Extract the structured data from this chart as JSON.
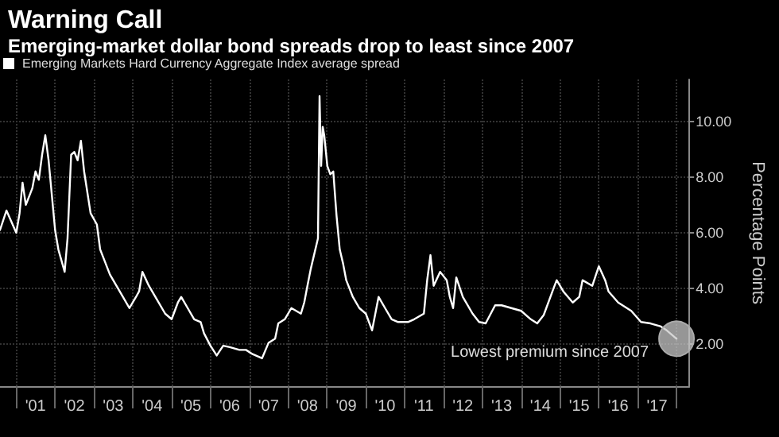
{
  "chart_data": {
    "type": "line",
    "title": "Warning Call",
    "subtitle": "Emerging-market dollar bond spreads drop to least since 2007",
    "ylabel": "Percentage Points",
    "annotations": [
      {
        "text": "Lowest premium since 2007",
        "x": "2018-01",
        "y": 2.2
      }
    ],
    "series": [
      {
        "name": "Emerging Markets Hard Currency Aggregate Index average spread",
        "color": "#ffffff",
        "x": [
          "2000-08",
          "2000-10",
          "2001-01",
          "2001-02",
          "2001-03",
          "2001-04",
          "2001-06",
          "2001-07",
          "2001-08",
          "2001-09",
          "2001-10",
          "2001-11",
          "2002-01",
          "2002-02",
          "2002-04-01",
          "2002-04-28",
          "2002-06",
          "2002-07",
          "2002-08",
          "2002-09",
          "2002-10",
          "2002-12",
          "2003-01-29",
          "2003-03",
          "2003-04",
          "2003-06",
          "2003-08",
          "2003-10",
          "2003-12",
          "2004-02",
          "2004-03",
          "2004-04",
          "2004-06",
          "2004-08",
          "2004-11",
          "2005-01",
          "2005-03",
          "2005-04",
          "2005-06",
          "2005-08",
          "2005-10",
          "2005-11",
          "2006-01",
          "2006-03",
          "2006-05",
          "2006-07",
          "2006-10",
          "2006-12",
          "2007-02",
          "2007-05",
          "2007-07",
          "2007-09",
          "2007-10",
          "2007-12",
          "2008-02",
          "2008-05",
          "2008-06",
          "2008-07",
          "2008-08",
          "2008-10-08",
          "2008-10-23",
          "2008-11-07",
          "2008-11-22",
          "2008-12-06",
          "2009-01-04",
          "2009-02",
          "2009-03",
          "2009-04",
          "2009-05",
          "2009-06",
          "2009-07",
          "2009-09",
          "2009-11",
          "2010-01",
          "2010-03",
          "2010-05",
          "2010-07",
          "2010-09",
          "2010-11",
          "2011-02",
          "2011-04",
          "2011-07",
          "2011-08",
          "2011-09",
          "2011-10",
          "2011-12",
          "2012-02",
          "2012-03",
          "2012-04",
          "2012-05",
          "2012-07",
          "2012-10",
          "2012-12",
          "2013-02",
          "2013-05",
          "2013-07",
          "2013-10",
          "2014-01",
          "2014-04",
          "2014-06",
          "2014-08",
          "2014-11",
          "2014-12",
          "2015-02",
          "2015-05",
          "2015-07",
          "2015-08",
          "2015-11",
          "2016-01",
          "2016-03",
          "2016-04",
          "2016-07",
          "2016-11",
          "2017-02",
          "2017-05",
          "2017-08",
          "2017-10",
          "2018-01"
        ],
        "values": [
          6.1,
          6.8,
          6.0,
          6.7,
          7.8,
          7.0,
          7.6,
          8.2,
          7.9,
          8.8,
          9.5,
          8.6,
          6.1,
          5.4,
          4.6,
          5.8,
          8.8,
          8.9,
          8.6,
          9.3,
          8.2,
          6.7,
          6.3,
          5.4,
          5.1,
          4.5,
          4.1,
          3.7,
          3.3,
          3.7,
          3.9,
          4.6,
          4.1,
          3.7,
          3.1,
          2.9,
          3.5,
          3.7,
          3.3,
          2.9,
          2.8,
          2.4,
          1.95,
          1.6,
          1.95,
          1.9,
          1.8,
          1.8,
          1.65,
          1.5,
          2.05,
          2.2,
          2.75,
          2.9,
          3.3,
          3.1,
          3.5,
          4.1,
          4.7,
          5.8,
          10.9,
          8.4,
          9.8,
          9.5,
          8.4,
          8.1,
          8.2,
          6.6,
          5.4,
          4.9,
          4.3,
          3.7,
          3.3,
          3.1,
          2.5,
          3.7,
          3.3,
          2.9,
          2.8,
          2.8,
          2.9,
          3.1,
          4.3,
          5.2,
          4.1,
          4.6,
          4.3,
          3.7,
          3.3,
          4.4,
          3.7,
          3.1,
          2.8,
          2.75,
          3.4,
          3.4,
          3.3,
          3.2,
          2.9,
          2.75,
          3.05,
          4.0,
          4.3,
          3.9,
          3.5,
          3.7,
          4.3,
          4.1,
          4.8,
          4.3,
          3.9,
          3.5,
          3.2,
          2.8,
          2.75,
          2.65,
          2.5,
          2.2
        ]
      }
    ],
    "xlim": [
      "2000-08",
      "2018-05"
    ],
    "xticks": [
      {
        "value": "2001-01",
        "label": null
      },
      {
        "value": "2001-07",
        "label": "'01"
      },
      {
        "value": "2002-01",
        "label": null
      },
      {
        "value": "2002-07",
        "label": "'02"
      },
      {
        "value": "2003-01",
        "label": null
      },
      {
        "value": "2003-07",
        "label": "'03"
      },
      {
        "value": "2004-01",
        "label": null
      },
      {
        "value": "2004-07",
        "label": "'04"
      },
      {
        "value": "2005-01",
        "label": null
      },
      {
        "value": "2005-07",
        "label": "'05"
      },
      {
        "value": "2006-01",
        "label": null
      },
      {
        "value": "2006-07",
        "label": "'06"
      },
      {
        "value": "2007-01",
        "label": null
      },
      {
        "value": "2007-07",
        "label": "'07"
      },
      {
        "value": "2008-01",
        "label": null
      },
      {
        "value": "2008-07",
        "label": "'08"
      },
      {
        "value": "2009-01",
        "label": null
      },
      {
        "value": "2009-07",
        "label": "'09"
      },
      {
        "value": "2010-01",
        "label": null
      },
      {
        "value": "2010-07",
        "label": "'10"
      },
      {
        "value": "2011-01",
        "label": null
      },
      {
        "value": "2011-07",
        "label": "'11"
      },
      {
        "value": "2012-01",
        "label": null
      },
      {
        "value": "2012-07",
        "label": "'12"
      },
      {
        "value": "2013-01",
        "label": null
      },
      {
        "value": "2013-07",
        "label": "'13"
      },
      {
        "value": "2014-01",
        "label": null
      },
      {
        "value": "2014-07",
        "label": "'14"
      },
      {
        "value": "2015-01",
        "label": null
      },
      {
        "value": "2015-07",
        "label": "'15"
      },
      {
        "value": "2016-01",
        "label": null
      },
      {
        "value": "2016-07",
        "label": "'16"
      },
      {
        "value": "2017-01",
        "label": null
      },
      {
        "value": "2017-07",
        "label": "'17"
      },
      {
        "value": "2018-01",
        "label": null
      }
    ],
    "ylim": [
      0.5,
      11.5
    ],
    "yticks": [
      {
        "value": 2,
        "label": "2.00"
      },
      {
        "value": 4,
        "label": "4.00"
      },
      {
        "value": 6,
        "label": "6.00"
      },
      {
        "value": 8,
        "label": "8.00"
      },
      {
        "value": 10,
        "label": "10.00"
      }
    ],
    "grid": true,
    "legend": "top left",
    "marker": "none",
    "line_style": "solid"
  }
}
